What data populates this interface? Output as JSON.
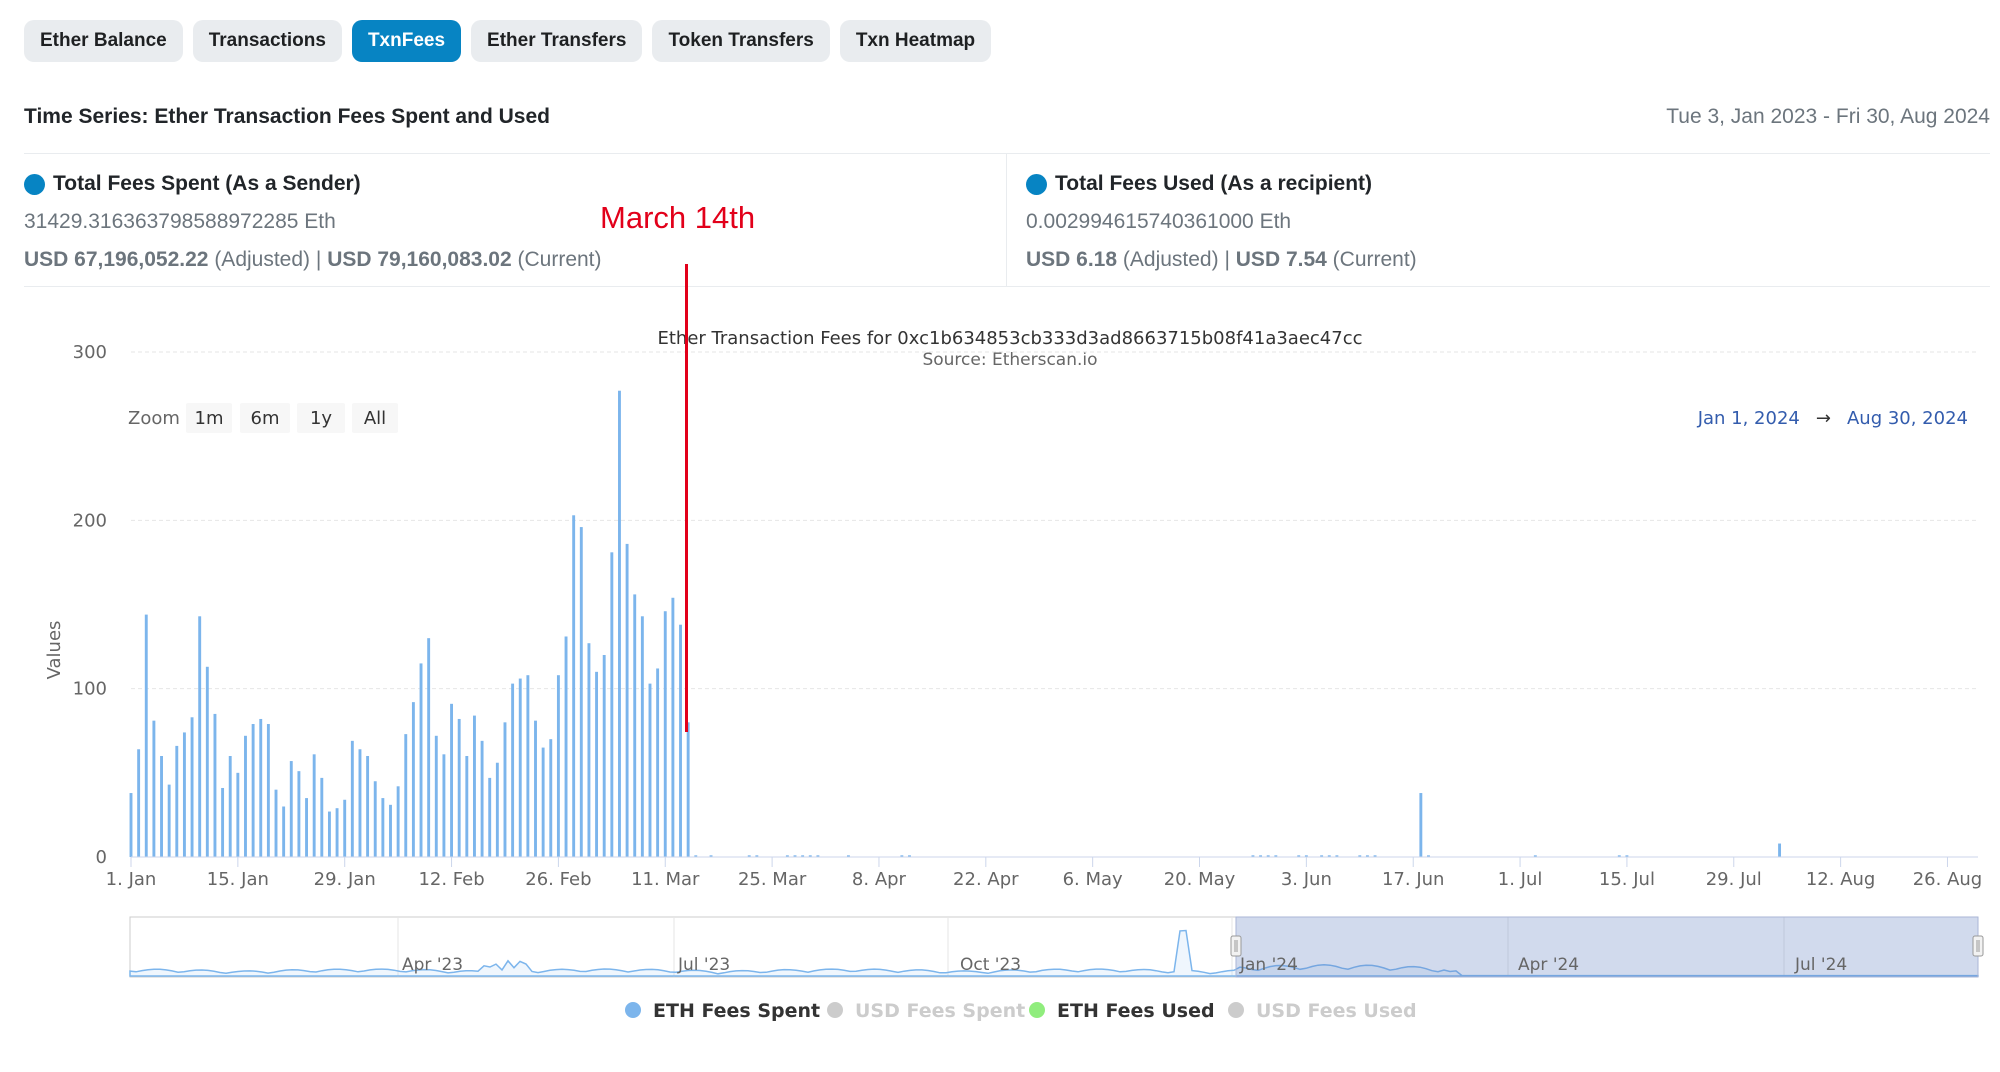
{
  "tabs": [
    {
      "label": "Ether Balance",
      "active": false
    },
    {
      "label": "Transactions",
      "active": false
    },
    {
      "label": "TxnFees",
      "active": true
    },
    {
      "label": "Ether Transfers",
      "active": false
    },
    {
      "label": "Token Transfers",
      "active": false
    },
    {
      "label": "Txn Heatmap",
      "active": false
    }
  ],
  "header": {
    "title": "Time Series: Ether Transaction Fees Spent and Used",
    "date_range": "Tue 3, Jan 2023 - Fri 30, Aug 2024"
  },
  "stats": {
    "spent": {
      "title": "Total Fees Spent (As a Sender)",
      "eth": "31429.316363798588972285 Eth",
      "usd_adjusted": "USD 67,196,052.22",
      "adjusted_label": "(Adjusted)",
      "separator": "|",
      "usd_current": "USD 79,160,083.02",
      "current_label": "(Current)"
    },
    "used": {
      "title": "Total Fees Used (As a recipient)",
      "eth": "0.002994615740361000 Eth",
      "usd_adjusted": "USD 6.18",
      "adjusted_label": "(Adjusted)",
      "separator": "|",
      "usd_current": "USD 7.54",
      "current_label": "(Current)"
    },
    "dot_color": "#0784c3"
  },
  "annotation": {
    "text": "March 14th",
    "color": "#e2001a"
  },
  "zoom": {
    "label": "Zoom",
    "buttons": [
      "1m",
      "6m",
      "1y",
      "All"
    ]
  },
  "range_selector": {
    "from": "Jan 1, 2024",
    "arrow": "→",
    "to": "Aug 30, 2024"
  },
  "legend": [
    {
      "label": "ETH Fees Spent",
      "color": "#7cb5ec",
      "active": true
    },
    {
      "label": "USD Fees Spent",
      "color": "#cccccc",
      "active": false
    },
    {
      "label": "ETH Fees Used",
      "color": "#90ed7d",
      "active": true
    },
    {
      "label": "USD Fees Used",
      "color": "#cccccc",
      "active": false
    }
  ],
  "navigator": {
    "labels": [
      "Apr '23",
      "Jul '23",
      "Oct '23",
      "Jan '24",
      "Apr '24",
      "Jul '24"
    ]
  },
  "chart_data": {
    "type": "bar",
    "title": "Ether Transaction Fees for 0xc1b634853cb333d3ad8663715b08f41a3aec47cc",
    "subtitle": "Source: Etherscan.io",
    "ylabel": "Values",
    "ylim": [
      0,
      300
    ],
    "yticks": [
      0,
      100,
      200,
      300
    ],
    "xlim": [
      "2024-01-01",
      "2024-08-30"
    ],
    "xticks": [
      "1. Jan",
      "15. Jan",
      "29. Jan",
      "12. Feb",
      "26. Feb",
      "11. Mar",
      "25. Mar",
      "8. Apr",
      "22. Apr",
      "6. May",
      "20. May",
      "3. Jun",
      "17. Jun",
      "1. Jul",
      "15. Jul",
      "29. Jul",
      "12. Aug",
      "26. Aug"
    ],
    "grid": true,
    "series": [
      {
        "name": "ETH Fees Spent",
        "color": "#7cb5ec",
        "data": [
          [
            "2024-01-01",
            38
          ],
          [
            "2024-01-02",
            64
          ],
          [
            "2024-01-03",
            144
          ],
          [
            "2024-01-04",
            81
          ],
          [
            "2024-01-05",
            60
          ],
          [
            "2024-01-06",
            43
          ],
          [
            "2024-01-07",
            66
          ],
          [
            "2024-01-08",
            74
          ],
          [
            "2024-01-09",
            83
          ],
          [
            "2024-01-10",
            143
          ],
          [
            "2024-01-11",
            113
          ],
          [
            "2024-01-12",
            85
          ],
          [
            "2024-01-13",
            41
          ],
          [
            "2024-01-14",
            60
          ],
          [
            "2024-01-15",
            50
          ],
          [
            "2024-01-16",
            72
          ],
          [
            "2024-01-17",
            79
          ],
          [
            "2024-01-18",
            82
          ],
          [
            "2024-01-19",
            79
          ],
          [
            "2024-01-20",
            40
          ],
          [
            "2024-01-21",
            30
          ],
          [
            "2024-01-22",
            57
          ],
          [
            "2024-01-23",
            51
          ],
          [
            "2024-01-24",
            35
          ],
          [
            "2024-01-25",
            61
          ],
          [
            "2024-01-26",
            47
          ],
          [
            "2024-01-27",
            27
          ],
          [
            "2024-01-28",
            29
          ],
          [
            "2024-01-29",
            34
          ],
          [
            "2024-01-30",
            69
          ],
          [
            "2024-01-31",
            64
          ],
          [
            "2024-02-01",
            60
          ],
          [
            "2024-02-02",
            45
          ],
          [
            "2024-02-03",
            35
          ],
          [
            "2024-02-04",
            31
          ],
          [
            "2024-02-05",
            42
          ],
          [
            "2024-02-06",
            73
          ],
          [
            "2024-02-07",
            92
          ],
          [
            "2024-02-08",
            115
          ],
          [
            "2024-02-09",
            130
          ],
          [
            "2024-02-10",
            72
          ],
          [
            "2024-02-11",
            61
          ],
          [
            "2024-02-12",
            91
          ],
          [
            "2024-02-13",
            82
          ],
          [
            "2024-02-14",
            60
          ],
          [
            "2024-02-15",
            84
          ],
          [
            "2024-02-16",
            69
          ],
          [
            "2024-02-17",
            47
          ],
          [
            "2024-02-18",
            56
          ],
          [
            "2024-02-19",
            80
          ],
          [
            "2024-02-20",
            103
          ],
          [
            "2024-02-21",
            106
          ],
          [
            "2024-02-22",
            108
          ],
          [
            "2024-02-23",
            81
          ],
          [
            "2024-02-24",
            65
          ],
          [
            "2024-02-25",
            70
          ],
          [
            "2024-02-26",
            108
          ],
          [
            "2024-02-27",
            131
          ],
          [
            "2024-02-28",
            203
          ],
          [
            "2024-02-29",
            196
          ],
          [
            "2024-03-01",
            127
          ],
          [
            "2024-03-02",
            110
          ],
          [
            "2024-03-03",
            120
          ],
          [
            "2024-03-04",
            181
          ],
          [
            "2024-03-05",
            277
          ],
          [
            "2024-03-06",
            186
          ],
          [
            "2024-03-07",
            156
          ],
          [
            "2024-03-08",
            143
          ],
          [
            "2024-03-09",
            103
          ],
          [
            "2024-03-10",
            112
          ],
          [
            "2024-03-11",
            146
          ],
          [
            "2024-03-12",
            154
          ],
          [
            "2024-03-13",
            138
          ],
          [
            "2024-03-14",
            80
          ],
          [
            "2024-03-15",
            1
          ],
          [
            "2024-03-17",
            1
          ],
          [
            "2024-03-22",
            1
          ],
          [
            "2024-03-23",
            1
          ],
          [
            "2024-03-27",
            1
          ],
          [
            "2024-03-28",
            1
          ],
          [
            "2024-03-29",
            1
          ],
          [
            "2024-03-30",
            1
          ],
          [
            "2024-03-31",
            1
          ],
          [
            "2024-04-04",
            1
          ],
          [
            "2024-04-11",
            1
          ],
          [
            "2024-04-12",
            1
          ],
          [
            "2024-05-27",
            1
          ],
          [
            "2024-05-28",
            1
          ],
          [
            "2024-05-29",
            1
          ],
          [
            "2024-05-30",
            1
          ],
          [
            "2024-06-02",
            1
          ],
          [
            "2024-06-03",
            1
          ],
          [
            "2024-06-05",
            1
          ],
          [
            "2024-06-06",
            1
          ],
          [
            "2024-06-07",
            1
          ],
          [
            "2024-06-10",
            1
          ],
          [
            "2024-06-11",
            1
          ],
          [
            "2024-06-12",
            1
          ],
          [
            "2024-06-18",
            38
          ],
          [
            "2024-06-19",
            1
          ],
          [
            "2024-07-03",
            1
          ],
          [
            "2024-07-14",
            1
          ],
          [
            "2024-07-15",
            1
          ],
          [
            "2024-08-04",
            8
          ]
        ]
      }
    ]
  }
}
